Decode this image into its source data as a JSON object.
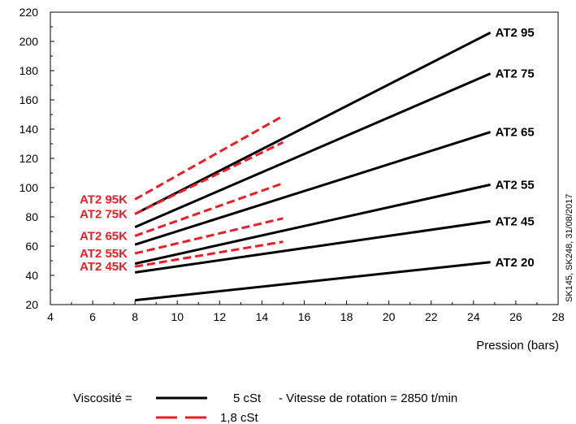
{
  "chart_data": {
    "type": "line",
    "xlabel": "Pression (bars)",
    "ylabel": "",
    "xlim": [
      4,
      28
    ],
    "ylim": [
      20,
      220
    ],
    "x_ticks": [
      4,
      6,
      8,
      10,
      12,
      14,
      16,
      18,
      20,
      22,
      24,
      26,
      28
    ],
    "y_ticks": [
      20,
      40,
      60,
      80,
      100,
      120,
      140,
      160,
      180,
      200,
      220
    ],
    "grid": false,
    "side_note": "SK145, SK248, 31/08/2017",
    "series": [
      {
        "name": "AT2 95",
        "style": "solid",
        "color": "#000000",
        "x": [
          8,
          24.8
        ],
        "y": [
          82,
          206
        ]
      },
      {
        "name": "AT2 75",
        "style": "solid",
        "color": "#000000",
        "x": [
          8,
          24.8
        ],
        "y": [
          73,
          178
        ]
      },
      {
        "name": "AT2 65",
        "style": "solid",
        "color": "#000000",
        "x": [
          8,
          24.8
        ],
        "y": [
          61,
          138
        ]
      },
      {
        "name": "AT2 55",
        "style": "solid",
        "color": "#000000",
        "x": [
          8,
          24.8
        ],
        "y": [
          48,
          102
        ]
      },
      {
        "name": "AT2 45",
        "style": "solid",
        "color": "#000000",
        "x": [
          8,
          24.8
        ],
        "y": [
          42,
          77
        ]
      },
      {
        "name": "AT2 20",
        "style": "solid",
        "color": "#000000",
        "x": [
          8,
          24.8
        ],
        "y": [
          23,
          49
        ]
      },
      {
        "name": "AT2 95K",
        "style": "dashed",
        "color": "#ee1c25",
        "x": [
          8,
          15
        ],
        "y": [
          92,
          149
        ]
      },
      {
        "name": "AT2 75K",
        "style": "dashed",
        "color": "#ee1c25",
        "x": [
          8,
          15
        ],
        "y": [
          82,
          131
        ]
      },
      {
        "name": "AT2 65K",
        "style": "dashed",
        "color": "#ee1c25",
        "x": [
          8,
          15
        ],
        "y": [
          67,
          103
        ]
      },
      {
        "name": "AT2 55K",
        "style": "dashed",
        "color": "#ee1c25",
        "x": [
          8,
          15
        ],
        "y": [
          55,
          79
        ]
      },
      {
        "name": "AT2 45K",
        "style": "dashed",
        "color": "#ee1c25",
        "x": [
          8,
          15
        ],
        "y": [
          46,
          63
        ]
      }
    ],
    "legend": {
      "prefix": "Viscosité =",
      "entries": [
        {
          "style": "solid",
          "color": "#000000",
          "label": "5 cSt"
        },
        {
          "style": "dashed",
          "color": "#ee1c25",
          "label": "1,8 cSt"
        }
      ],
      "note": "- Vitesse de rotation = 2850 t/min"
    }
  }
}
